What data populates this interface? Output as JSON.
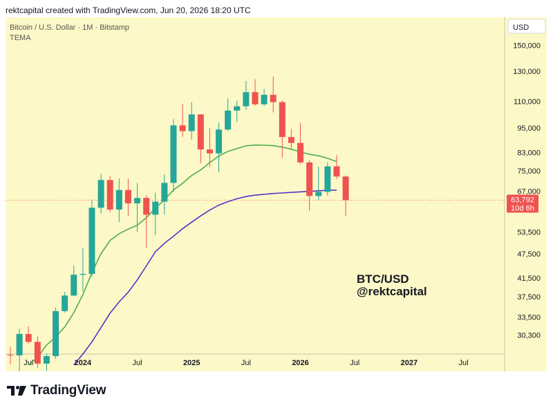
{
  "header": {
    "attribution": "rektcapital created with TradingView.com, Jun 20, 2026 18:20 UTC"
  },
  "legend": {
    "symbol": "Bitcoin / U.S. Dollar · 1M · Bitstamp",
    "indicator": "TEMA"
  },
  "currency": "USD",
  "watermark": {
    "pair": "BTC/USD",
    "handle": "@rektcapital"
  },
  "price_tag": {
    "price": "63,792",
    "countdown": "10d 6h"
  },
  "footer": {
    "brand": "TradingView"
  },
  "colors": {
    "up": "#26a69a",
    "down": "#ef5350",
    "ma_fast": "#4caf50",
    "ma_slow": "#5b2ec8",
    "background": "#fdf8c7"
  },
  "chart_data": {
    "type": "candlestick",
    "scale": "log",
    "ylim": [
      27300,
      175000
    ],
    "y_ticks": [
      150000,
      130000,
      110000,
      95000,
      83000,
      75000,
      67000,
      60000,
      53500,
      47500,
      41500,
      37500,
      33500,
      30300
    ],
    "y_tick_labels": [
      "150,000",
      "130,000",
      "110,000",
      "95,000",
      "83,000",
      "75,000",
      "67,000",
      "",
      "53,500",
      "47,500",
      "41,500",
      "37,500",
      "33,500",
      "30,300"
    ],
    "x_ticks": [
      {
        "label": "Jul",
        "month": "2023-07",
        "bold": false
      },
      {
        "label": "2024",
        "month": "2024-01",
        "bold": true
      },
      {
        "label": "Jul",
        "month": "2024-07",
        "bold": false
      },
      {
        "label": "2025",
        "month": "2025-01",
        "bold": true
      },
      {
        "label": "Jul",
        "month": "2025-07",
        "bold": false
      },
      {
        "label": "2026",
        "month": "2026-01",
        "bold": true
      },
      {
        "label": "Jul",
        "month": "2026-07",
        "bold": false
      },
      {
        "label": "2027",
        "month": "2027-01",
        "bold": true
      },
      {
        "label": "Jul",
        "month": "2027-07",
        "bold": false
      }
    ],
    "x_range": [
      "2023-05",
      "2027-11"
    ],
    "candles": [
      {
        "date": "2023-05",
        "open": 27200,
        "high": 28400,
        "low": 25800,
        "close": 27100
      },
      {
        "date": "2023-06",
        "open": 27100,
        "high": 31400,
        "low": 24800,
        "close": 30500
      },
      {
        "date": "2023-07",
        "open": 30500,
        "high": 31800,
        "low": 28900,
        "close": 29200
      },
      {
        "date": "2023-08",
        "open": 29200,
        "high": 30100,
        "low": 25300,
        "close": 25900
      },
      {
        "date": "2023-09",
        "open": 25900,
        "high": 27400,
        "low": 24900,
        "close": 27000
      },
      {
        "date": "2023-10",
        "open": 27000,
        "high": 35300,
        "low": 26600,
        "close": 34600
      },
      {
        "date": "2023-11",
        "open": 34600,
        "high": 38500,
        "low": 34300,
        "close": 37700
      },
      {
        "date": "2023-12",
        "open": 37700,
        "high": 44500,
        "low": 37600,
        "close": 42300
      },
      {
        "date": "2024-01",
        "open": 42300,
        "high": 48900,
        "low": 38600,
        "close": 42500
      },
      {
        "date": "2024-02",
        "open": 42500,
        "high": 64000,
        "low": 41900,
        "close": 61200
      },
      {
        "date": "2024-03",
        "open": 61200,
        "high": 73800,
        "low": 59300,
        "close": 71300
      },
      {
        "date": "2024-04",
        "open": 71300,
        "high": 72800,
        "low": 59700,
        "close": 60600
      },
      {
        "date": "2024-05",
        "open": 60600,
        "high": 71900,
        "low": 56600,
        "close": 67500
      },
      {
        "date": "2024-06",
        "open": 67500,
        "high": 71900,
        "low": 58500,
        "close": 62700
      },
      {
        "date": "2024-07",
        "open": 62700,
        "high": 70100,
        "low": 53500,
        "close": 64600
      },
      {
        "date": "2024-08",
        "open": 64600,
        "high": 65600,
        "low": 49100,
        "close": 58900
      },
      {
        "date": "2024-09",
        "open": 58900,
        "high": 66500,
        "low": 52600,
        "close": 63300
      },
      {
        "date": "2024-10",
        "open": 63300,
        "high": 73600,
        "low": 58900,
        "close": 70200
      },
      {
        "date": "2024-11",
        "open": 70200,
        "high": 99800,
        "low": 66800,
        "close": 96400
      },
      {
        "date": "2024-12",
        "open": 96400,
        "high": 108300,
        "low": 90500,
        "close": 93400
      },
      {
        "date": "2025-01",
        "open": 93400,
        "high": 109600,
        "low": 89200,
        "close": 102400
      },
      {
        "date": "2025-02",
        "open": 102400,
        "high": 102600,
        "low": 78200,
        "close": 84400
      },
      {
        "date": "2025-03",
        "open": 84400,
        "high": 95000,
        "low": 76600,
        "close": 82600
      },
      {
        "date": "2025-04",
        "open": 82600,
        "high": 97900,
        "low": 74400,
        "close": 94200
      },
      {
        "date": "2025-05",
        "open": 94200,
        "high": 111900,
        "low": 93400,
        "close": 104600
      },
      {
        "date": "2025-06",
        "open": 104600,
        "high": 110500,
        "low": 98200,
        "close": 107100
      },
      {
        "date": "2025-07",
        "open": 107100,
        "high": 123200,
        "low": 105100,
        "close": 115800
      },
      {
        "date": "2025-08",
        "open": 115800,
        "high": 124500,
        "low": 107400,
        "close": 108300
      },
      {
        "date": "2025-09",
        "open": 108300,
        "high": 117900,
        "low": 107300,
        "close": 114100
      },
      {
        "date": "2025-10",
        "open": 114100,
        "high": 126200,
        "low": 103500,
        "close": 109600
      },
      {
        "date": "2025-11",
        "open": 109600,
        "high": 110600,
        "low": 80600,
        "close": 90400
      },
      {
        "date": "2025-12",
        "open": 90400,
        "high": 94600,
        "low": 84500,
        "close": 87500
      },
      {
        "date": "2026-01",
        "open": 87500,
        "high": 97900,
        "low": 77800,
        "close": 78600
      },
      {
        "date": "2026-02",
        "open": 78600,
        "high": 79600,
        "low": 60100,
        "close": 65300
      },
      {
        "date": "2026-03",
        "open": 65300,
        "high": 76800,
        "low": 63800,
        "close": 66800
      },
      {
        "date": "2026-04",
        "open": 66800,
        "high": 78700,
        "low": 65400,
        "close": 76900
      },
      {
        "date": "2026-05",
        "open": 76900,
        "high": 81800,
        "low": 71600,
        "close": 72700
      },
      {
        "date": "2026-06",
        "open": 72700,
        "high": 73200,
        "low": 58400,
        "close": 63792
      }
    ],
    "series": [
      {
        "name": "TEMA",
        "color": "#4caf50",
        "points": [
          [
            "2023-07",
            25700
          ],
          [
            "2023-08",
            26800
          ],
          [
            "2023-09",
            28700
          ],
          [
            "2023-10",
            30000
          ],
          [
            "2023-11",
            31700
          ],
          [
            "2023-12",
            34300
          ],
          [
            "2024-01",
            37900
          ],
          [
            "2024-02",
            42800
          ],
          [
            "2024-03",
            47500
          ],
          [
            "2024-04",
            51100
          ],
          [
            "2024-05",
            53000
          ],
          [
            "2024-06",
            54400
          ],
          [
            "2024-07",
            55600
          ],
          [
            "2024-08",
            57900
          ],
          [
            "2024-09",
            61100
          ],
          [
            "2024-10",
            63900
          ],
          [
            "2024-11",
            67500
          ],
          [
            "2024-12",
            70000
          ],
          [
            "2025-01",
            73100
          ],
          [
            "2025-02",
            75400
          ],
          [
            "2025-03",
            78500
          ],
          [
            "2025-04",
            81400
          ],
          [
            "2025-05",
            83500
          ],
          [
            "2025-06",
            84800
          ],
          [
            "2025-07",
            86100
          ],
          [
            "2025-08",
            86500
          ],
          [
            "2025-09",
            86400
          ],
          [
            "2025-10",
            86200
          ],
          [
            "2025-11",
            85500
          ],
          [
            "2025-12",
            84500
          ],
          [
            "2026-01",
            83300
          ],
          [
            "2026-02",
            82200
          ],
          [
            "2026-03",
            81500
          ],
          [
            "2026-04",
            80400
          ],
          [
            "2026-05",
            78900
          ]
        ]
      },
      {
        "name": "TEMA",
        "color": "#5b2ec8",
        "points": [
          [
            "2023-12",
            25700
          ],
          [
            "2024-01",
            27300
          ],
          [
            "2024-02",
            29200
          ],
          [
            "2024-03",
            31600
          ],
          [
            "2024-04",
            34200
          ],
          [
            "2024-05",
            36400
          ],
          [
            "2024-06",
            38400
          ],
          [
            "2024-07",
            41100
          ],
          [
            "2024-08",
            44400
          ],
          [
            "2024-09",
            48000
          ],
          [
            "2024-10",
            50300
          ],
          [
            "2024-11",
            52300
          ],
          [
            "2024-12",
            54500
          ],
          [
            "2025-01",
            56500
          ],
          [
            "2025-02",
            58500
          ],
          [
            "2025-03",
            60400
          ],
          [
            "2025-04",
            62100
          ],
          [
            "2025-05",
            63300
          ],
          [
            "2025-06",
            64300
          ],
          [
            "2025-07",
            65100
          ],
          [
            "2025-08",
            65600
          ],
          [
            "2025-09",
            65900
          ],
          [
            "2025-10",
            66200
          ],
          [
            "2025-11",
            66400
          ],
          [
            "2025-12",
            66600
          ],
          [
            "2026-01",
            66800
          ],
          [
            "2026-02",
            67000
          ],
          [
            "2026-03",
            67200
          ],
          [
            "2026-04",
            67400
          ],
          [
            "2026-05",
            67400
          ]
        ]
      }
    ],
    "last_price": 63792
  }
}
